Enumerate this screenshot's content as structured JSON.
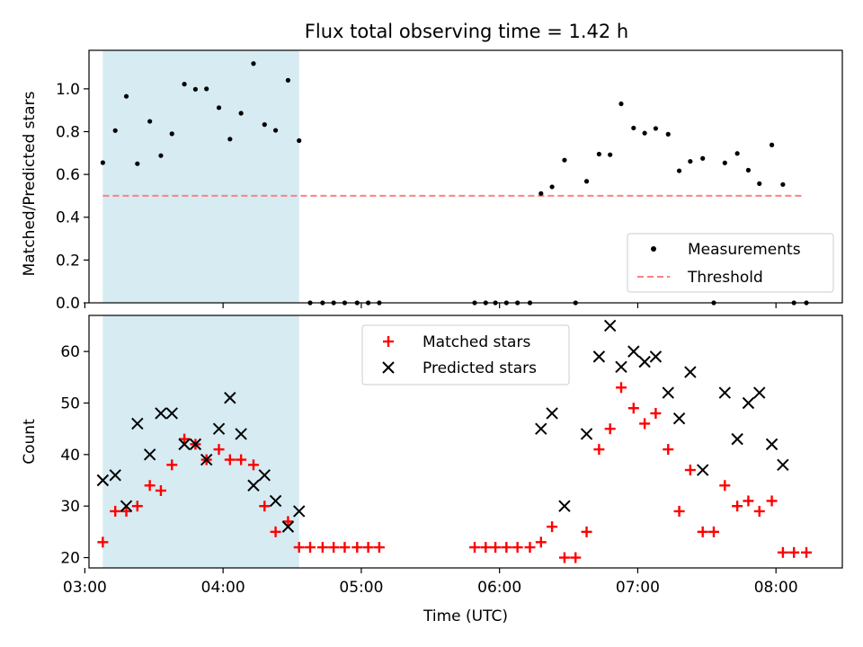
{
  "title": "Flux total observing time = 1.42 h",
  "colors": {
    "observing_span": "#add8e6",
    "threshold": "#ff8080",
    "measurements": "#000000",
    "matched": "#ff0000",
    "predicted": "#000000"
  },
  "chart_data": [
    {
      "type": "scatter",
      "title": "Flux total observing time = 1.42 h",
      "xlabel": "",
      "ylabel": "Matched/Predicted stars",
      "xlim": [
        3.03,
        8.48
      ],
      "ylim": [
        0,
        1.18
      ],
      "yticks": [
        0.0,
        0.2,
        0.4,
        0.6,
        0.8,
        1.0
      ],
      "ytick_labels": [
        "0.0",
        "0.2",
        "0.4",
        "0.6",
        "0.8",
        "1.0"
      ],
      "xticks": [
        3,
        4,
        5,
        6,
        7,
        8
      ],
      "grid": false,
      "legend_position": "lower-right",
      "shaded_span": [
        3.13,
        4.55
      ],
      "threshold": {
        "name": "Threshold",
        "value": 0.5,
        "x_range": [
          3.13,
          8.2
        ]
      },
      "series": [
        {
          "name": "Measurements",
          "marker": "dot",
          "x": [
            3.13,
            3.22,
            3.3,
            3.38,
            3.47,
            3.55,
            3.63,
            3.72,
            3.8,
            3.88,
            3.97,
            4.05,
            4.13,
            4.22,
            4.3,
            4.38,
            4.47,
            4.55,
            4.63,
            4.72,
            4.8,
            4.88,
            4.97,
            5.05,
            5.13,
            5.82,
            5.9,
            5.97,
            6.05,
            6.13,
            6.22,
            6.3,
            6.38,
            6.47,
            6.55,
            6.63,
            6.72,
            6.8,
            6.88,
            6.97,
            7.05,
            7.13,
            7.22,
            7.3,
            7.38,
            7.47,
            7.55,
            7.63,
            7.72,
            7.8,
            7.88,
            7.97,
            8.05,
            8.13,
            8.22
          ],
          "y": [
            0.655,
            0.805,
            0.965,
            0.65,
            0.848,
            0.688,
            0.79,
            1.022,
            0.998,
            1.0,
            0.912,
            0.765,
            0.886,
            1.118,
            0.833,
            0.806,
            1.04,
            0.758,
            0.0,
            0.0,
            0.0,
            0.0,
            0.0,
            0.0,
            0.0,
            0.0,
            0.0,
            0.0,
            0.0,
            0.0,
            0.0,
            0.511,
            0.542,
            0.667,
            0.0,
            0.568,
            0.695,
            0.692,
            0.93,
            0.817,
            0.793,
            0.815,
            0.788,
            0.617,
            0.661,
            0.675,
            0.0,
            0.654,
            0.698,
            0.62,
            0.557,
            0.738,
            0.553,
            0.0,
            0.0
          ]
        }
      ]
    },
    {
      "type": "scatter",
      "xlabel": "Time (UTC)",
      "ylabel": "Count",
      "xlim": [
        3.03,
        8.48
      ],
      "ylim": [
        18,
        67
      ],
      "yticks": [
        20,
        30,
        40,
        50,
        60
      ],
      "ytick_labels": [
        "20",
        "30",
        "40",
        "50",
        "60"
      ],
      "xticks": [
        3,
        4,
        5,
        6,
        7,
        8
      ],
      "xtick_labels": [
        "03:00",
        "04:00",
        "05:00",
        "06:00",
        "07:00",
        "08:00"
      ],
      "grid": false,
      "legend_position": "top-center",
      "shaded_span": [
        3.13,
        4.55
      ],
      "series": [
        {
          "name": "Matched stars",
          "marker": "plus",
          "x": [
            3.13,
            3.22,
            3.3,
            3.38,
            3.47,
            3.55,
            3.63,
            3.72,
            3.8,
            3.88,
            3.97,
            4.05,
            4.13,
            4.22,
            4.3,
            4.38,
            4.47,
            4.55,
            4.63,
            4.72,
            4.8,
            4.88,
            4.97,
            5.05,
            5.13,
            5.82,
            5.9,
            5.97,
            6.05,
            6.13,
            6.22,
            6.3,
            6.38,
            6.47,
            6.55,
            6.63,
            6.72,
            6.8,
            6.88,
            6.97,
            7.05,
            7.13,
            7.22,
            7.3,
            7.38,
            7.47,
            7.55,
            7.63,
            7.72,
            7.8,
            7.88,
            7.97,
            8.05,
            8.13,
            8.22
          ],
          "y": [
            23,
            29,
            29,
            30,
            34,
            33,
            38,
            43,
            42,
            39,
            41,
            39,
            39,
            38,
            30,
            25,
            27,
            22,
            22,
            22,
            22,
            22,
            22,
            22,
            22,
            22,
            22,
            22,
            22,
            22,
            22,
            23,
            26,
            20,
            20,
            25,
            41,
            45,
            53,
            49,
            46,
            48,
            41,
            29,
            37,
            25,
            25,
            34,
            30,
            31,
            29,
            31,
            21,
            21,
            21
          ]
        },
        {
          "name": "Predicted stars",
          "marker": "x",
          "x": [
            3.13,
            3.22,
            3.3,
            3.38,
            3.47,
            3.55,
            3.63,
            3.72,
            3.8,
            3.88,
            3.97,
            4.05,
            4.13,
            4.22,
            4.3,
            4.38,
            4.47,
            4.55,
            6.3,
            6.38,
            6.47,
            6.63,
            6.72,
            6.8,
            6.88,
            6.97,
            7.05,
            7.13,
            7.22,
            7.3,
            7.38,
            7.47,
            7.63,
            7.72,
            7.8,
            7.88,
            7.97,
            8.05
          ],
          "y": [
            35,
            36,
            30,
            46,
            40,
            48,
            48,
            42,
            42,
            39,
            45,
            51,
            44,
            34,
            36,
            31,
            26,
            29,
            45,
            48,
            30,
            44,
            59,
            65,
            57,
            60,
            58,
            59,
            52,
            47,
            56,
            37,
            52,
            43,
            50,
            52,
            42,
            38
          ]
        }
      ]
    }
  ]
}
